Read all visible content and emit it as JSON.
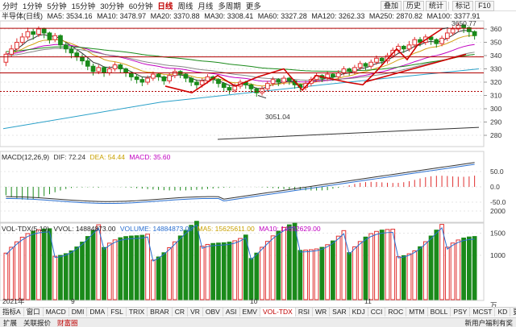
{
  "toolbar": {
    "timeframes": [
      "分时",
      "1分钟",
      "5分钟",
      "15分钟",
      "30分钟",
      "60分钟",
      "日线",
      "周线",
      "月线",
      "多周期",
      "更多"
    ],
    "active_index": 6,
    "right_buttons": [
      "叠加",
      "历史",
      "统计",
      "标记",
      "F10"
    ]
  },
  "legend": {
    "title": "半导体(日线)",
    "items": [
      {
        "text": "MA5: 3534.16",
        "color": "#333333"
      },
      {
        "text": "MA10: 3478.97",
        "color": "#d4a017"
      },
      {
        "text": "MA20: 3370.88",
        "color": "#c000c0"
      },
      {
        "text": "MA30: 3308.41",
        "color": "#777777"
      },
      {
        "text": "MA60: 3327.28",
        "color": "#1a8a1a"
      },
      {
        "text": "MA120: 3262.33",
        "color": "#2aa0c8"
      },
      {
        "text": "MA250: 2870.82",
        "color": "#333333"
      },
      {
        "text": "MA100: 3377.91",
        "color": "#333333"
      }
    ]
  },
  "price_axis": {
    "ticks": [
      "360",
      "350",
      "340",
      "330",
      "320",
      "310",
      "300",
      "290",
      "280"
    ]
  },
  "annotations": {
    "high": "3650.77",
    "low": "3051.04"
  },
  "month_labels": [
    "2021年",
    "9",
    "10",
    "11"
  ],
  "macd": {
    "title": "MACD(12,26,9)",
    "dif": "DIF: 72.24",
    "dea": "DEA: 54.44",
    "macd": "MACD: 35.60",
    "ticks": [
      "50.0",
      "0.0",
      "-50.0"
    ]
  },
  "volume": {
    "title": "VOL-TDX(5,10)",
    "vvol": "VVOL: 14884873.00",
    "vol": "VOLUME: 14884873.00",
    "ma5": "MA5: 15625611.00",
    "ma10": "MA10: 14592629.00",
    "ticks": [
      "2000",
      "1500",
      "1000"
    ],
    "unit": "万"
  },
  "indicator_tabs": [
    "指标A",
    "窗口",
    "MACD",
    "DMI",
    "DMA",
    "FSL",
    "TRIX",
    "BRAR",
    "CR",
    "VR",
    "OBV",
    "ASI",
    "EMV",
    "VOL-TDX",
    "RSI",
    "WR",
    "SAR",
    "KDJ",
    "CCI",
    "ROC",
    "MTM",
    "BOLL",
    "PSY",
    "MCST",
    "KD",
    "更多",
    "设置"
  ],
  "indicator_tabs_active": 13,
  "indicator_right": [
    "指标B",
    "模板"
  ],
  "status": [
    "扩展",
    "关联报价",
    "财富圈",
    "",
    "新用户福利有奖"
  ],
  "colors": {
    "up": "#e03030",
    "down": "#1a8a1a",
    "panel_bg": "#ffffff",
    "grid": "#e6e6e6"
  }
}
